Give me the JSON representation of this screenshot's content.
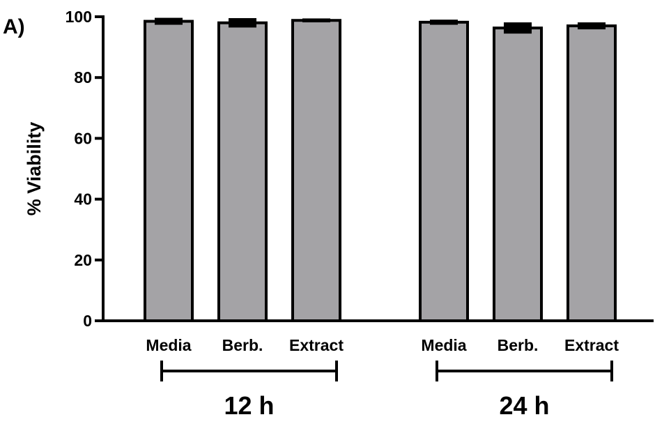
{
  "panel_label": "A)",
  "colors": {
    "bar_fill": "#a4a3a6",
    "bar_stroke": "#000000",
    "axis": "#000000",
    "background": "#ffffff"
  },
  "chart_data": {
    "type": "bar",
    "title": "",
    "xlabel": "",
    "ylabel": "% Viability",
    "ylim": [
      0,
      100
    ],
    "yticks": [
      0,
      20,
      40,
      60,
      80,
      100
    ],
    "grid": false,
    "legend": "none",
    "categories": [
      "Media",
      "Berb.",
      "Extract",
      "Media",
      "Berb.",
      "Extract"
    ],
    "groups": [
      {
        "label": "12 h",
        "categories": [
          "Media",
          "Berb.",
          "Extract"
        ],
        "values": [
          98.5,
          98.0,
          98.8
        ],
        "errors": [
          0.8,
          1.2,
          0.3
        ]
      },
      {
        "label": "24 h",
        "categories": [
          "Media",
          "Berb.",
          "Extract"
        ],
        "values": [
          98.2,
          96.3,
          97.0
        ],
        "errors": [
          0.5,
          1.5,
          0.8
        ]
      }
    ]
  }
}
